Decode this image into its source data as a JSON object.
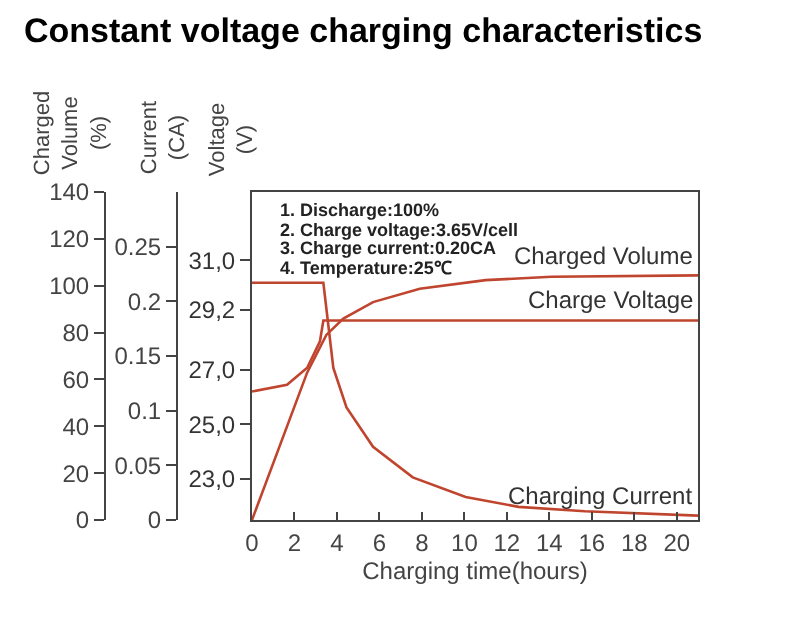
{
  "chart_data": {
    "type": "line",
    "title": "Constant voltage charging characteristics",
    "xlabel": "Charging time(hours)",
    "ylabel": "Charged Volume (%)",
    "y2label": "Current (CA)",
    "y3label": "Voltage (V)",
    "xlim": [
      0,
      21
    ],
    "xticks": [
      0,
      2,
      4,
      6,
      8,
      10,
      12,
      14,
      16,
      18,
      20
    ],
    "ylim": [
      0,
      140
    ],
    "yticks": [
      0,
      20,
      40,
      60,
      80,
      100,
      120,
      140
    ],
    "y2lim": [
      0,
      0.3
    ],
    "y2ticks": [
      0,
      0.05,
      0.1,
      0.15,
      0.2,
      0.25
    ],
    "y3lim": [
      21.5,
      33.5
    ],
    "y3ticks": [
      {
        "value": 23,
        "label": "23,0"
      },
      {
        "value": 25,
        "label": "25,0"
      },
      {
        "value": 27,
        "label": "27,0"
      },
      {
        "value": 29.2,
        "label": "29,2"
      },
      {
        "value": 31,
        "label": "31,0"
      }
    ],
    "grid": false,
    "legend": false,
    "annotations": [
      "1. Discharge:100%",
      "2. Charge voltage:3.65V/cell",
      "3. Charge current:0.20CA",
      "4. Temperature:25℃"
    ],
    "series": [
      {
        "name": "Charged Volume",
        "color": "#c0452e",
        "x": [
          0,
          2.6,
          3.5,
          4.3,
          5.7,
          7.9,
          11,
          14.1,
          21
        ],
        "values": [
          0,
          63,
          79,
          86,
          93,
          98.7,
          102.4,
          103.8,
          104.4
        ]
      },
      {
        "name": "Charge Voltage",
        "color": "#c0452e",
        "axis": "y3",
        "x": [
          0,
          1.65,
          2.6,
          3.2,
          3.36,
          21
        ],
        "values": [
          26.2,
          26.45,
          27.07,
          28.04,
          28.8,
          28.8
        ]
      },
      {
        "name": "Charging Current",
        "color": "#c0452e",
        "axis": "y2",
        "x": [
          0,
          3.36,
          3.83,
          4.45,
          5.7,
          7.57,
          10.06,
          12.55,
          15.67,
          21
        ],
        "values": [
          0.217,
          0.217,
          0.139,
          0.103,
          0.067,
          0.039,
          0.021,
          0.012,
          0.008,
          0.004
        ]
      }
    ]
  }
}
